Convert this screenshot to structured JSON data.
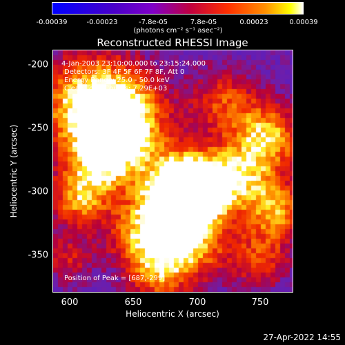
{
  "colorbar": {
    "ticks": [
      "-0.00039",
      "-0.00023",
      "-7.8e-05",
      "7.8e-05",
      "0.00023",
      "0.00039"
    ],
    "units": "(photons cm⁻² s⁻¹ asec⁻²)"
  },
  "title": "Reconstructed RHESSI Image",
  "info": {
    "time": "4-Jan-2003 23:10:00.000 to 23:15:24.000",
    "detectors": "Detectors: 3F 4F 5F 6F 7F 8F, Att 0",
    "energy": "Energy Range: 25.0 - 50.0 keV",
    "clean": "Clean     Total Counts: 7.29E+03",
    "peak": "Position of Peak = [687,-299]"
  },
  "axes": {
    "xlabel": "Heliocentric X (arcsec)",
    "ylabel": "Heliocentric Y (arcsec)",
    "xticks": [
      "600",
      "650",
      "700",
      "750"
    ],
    "yticks": [
      "-200",
      "-250",
      "-300",
      "-350"
    ]
  },
  "timestamp": "27-Apr-2022 14:55",
  "colors": {
    "background": "#000000",
    "text": "#ffffff"
  }
}
